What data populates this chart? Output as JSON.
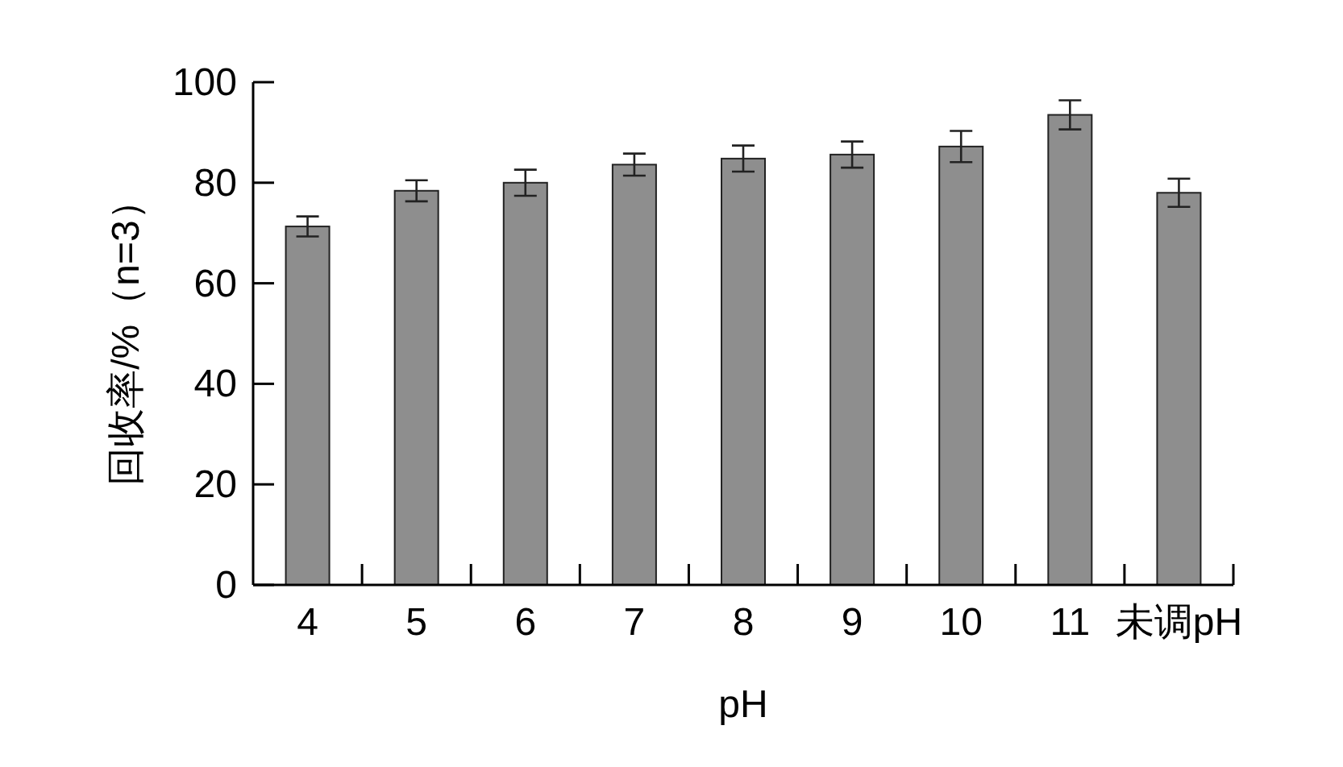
{
  "chart_data": {
    "type": "bar",
    "xlabel": "pH",
    "ylabel": "回收率/%（n=3）",
    "categories": [
      "4",
      "5",
      "6",
      "7",
      "8",
      "9",
      "10",
      "11",
      "未调pH"
    ],
    "values": [
      71.3,
      78.4,
      80.0,
      83.6,
      84.8,
      85.6,
      87.2,
      93.5,
      78.0
    ],
    "errors": [
      2.0,
      2.1,
      2.6,
      2.2,
      2.6,
      2.6,
      3.1,
      2.9,
      2.8
    ],
    "color": "#8e8e8e",
    "ylim": [
      0,
      100
    ],
    "yticks": [
      0,
      20,
      40,
      60,
      80,
      100
    ],
    "grid": false
  }
}
